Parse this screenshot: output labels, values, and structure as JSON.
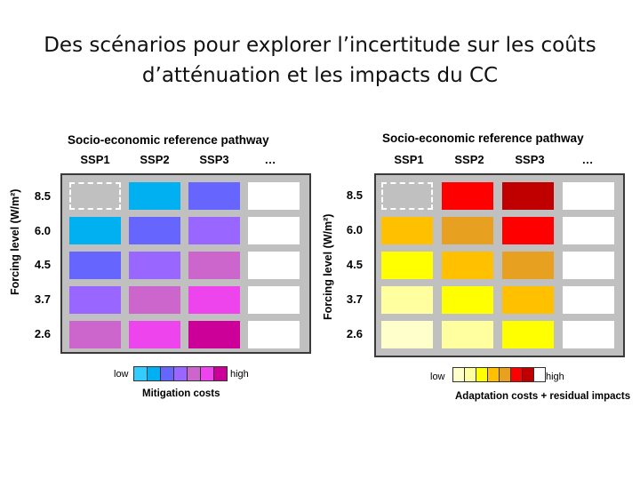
{
  "title_line1": "Des scénarios pour explorer l’incertitude sur les coûts",
  "title_line2": "d’atténuation et les impacts du CC",
  "left_panel": {
    "header": "Socio-economic reference pathway",
    "columns": [
      "SSP1",
      "SSP2",
      "SSP3",
      "…"
    ],
    "y_axis_label": "Forcing level (W/m²)",
    "rows": [
      "8.5",
      "6.0",
      "4.5",
      "3.7",
      "2.6"
    ],
    "cells": [
      [
        "baseline",
        "#00b0f0",
        "#6666ff",
        "empty"
      ],
      [
        "#00b0f0",
        "#6666ff",
        "#9966ff",
        "empty"
      ],
      [
        "#6666ff",
        "#9966ff",
        "#cc66cc",
        "empty"
      ],
      [
        "#9966ff",
        "#cc66cc",
        "#ee44ee",
        "empty"
      ],
      [
        "#cc66cc",
        "#ee44ee",
        "#cc0099",
        "empty"
      ]
    ],
    "legend": {
      "low": "low",
      "high": "high",
      "caption": "Mitigation costs",
      "colors": [
        "#33ccff",
        "#00b0f0",
        "#6666ff",
        "#9966ff",
        "#cc66cc",
        "#ee44ee",
        "#cc0099"
      ]
    }
  },
  "right_panel": {
    "header": "Socio-economic reference pathway",
    "columns": [
      "SSP1",
      "SSP2",
      "SSP3",
      "…"
    ],
    "y_axis_label": "Forcing level (W/m²)",
    "rows": [
      "8.5",
      "6.0",
      "4.5",
      "3.7",
      "2.6"
    ],
    "cells": [
      [
        "baseline",
        "#ff0000",
        "#c00000",
        "empty"
      ],
      [
        "#ffc000",
        "#e8a020",
        "#ff0000",
        "empty"
      ],
      [
        "#ffff00",
        "#ffc000",
        "#e8a020",
        "empty"
      ],
      [
        "#ffffa0",
        "#ffff00",
        "#ffc000",
        "empty"
      ],
      [
        "#ffffcc",
        "#ffffa0",
        "#ffff00",
        "empty"
      ]
    ],
    "legend": {
      "low": "low",
      "high": "high",
      "caption": "Adaptation costs + residual impacts",
      "colors": [
        "#ffffcc",
        "#ffffa0",
        "#ffff00",
        "#ffc000",
        "#e8a020",
        "#ff0000",
        "#c00000",
        "#ffffff"
      ]
    }
  }
}
